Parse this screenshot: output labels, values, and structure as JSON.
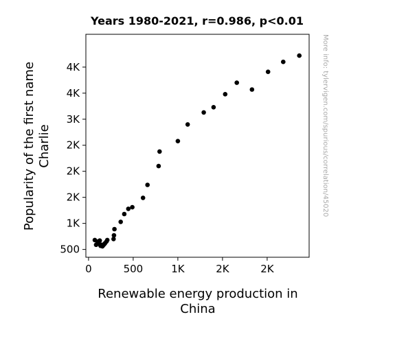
{
  "chart_data": {
    "type": "scatter",
    "title": "Years 1980-2021, r=0.986, p<0.01",
    "xlabel_lines": [
      "Renewable energy production in",
      "China"
    ],
    "ylabel_lines": [
      "Popularity of the first name",
      "Charlie"
    ],
    "watermark": "More info: tylervigen.com/spurious/correlation/45020",
    "xlim": [
      -30,
      2470
    ],
    "ylim": [
      350,
      4630
    ],
    "x_ticks": [
      {
        "value": 0,
        "label": "0"
      },
      {
        "value": 500,
        "label": "500"
      },
      {
        "value": 1000,
        "label": "1K"
      },
      {
        "value": 1500,
        "label": "2K"
      },
      {
        "value": 2000,
        "label": "2K"
      }
    ],
    "y_ticks": [
      {
        "value": 500,
        "label": "500"
      },
      {
        "value": 1000,
        "label": "1K"
      },
      {
        "value": 1500,
        "label": "2K"
      },
      {
        "value": 2000,
        "label": "2K"
      },
      {
        "value": 2500,
        "label": "2K"
      },
      {
        "value": 3000,
        "label": "3K"
      },
      {
        "value": 3500,
        "label": "4K"
      },
      {
        "value": 4000,
        "label": "4K"
      }
    ],
    "points": [
      {
        "x": 70,
        "y": 680
      },
      {
        "x": 85,
        "y": 590
      },
      {
        "x": 100,
        "y": 650
      },
      {
        "x": 115,
        "y": 610
      },
      {
        "x": 125,
        "y": 670
      },
      {
        "x": 135,
        "y": 570
      },
      {
        "x": 145,
        "y": 590
      },
      {
        "x": 155,
        "y": 560
      },
      {
        "x": 165,
        "y": 580
      },
      {
        "x": 175,
        "y": 600
      },
      {
        "x": 185,
        "y": 620
      },
      {
        "x": 200,
        "y": 650
      },
      {
        "x": 210,
        "y": 680
      },
      {
        "x": 280,
        "y": 700
      },
      {
        "x": 285,
        "y": 770
      },
      {
        "x": 290,
        "y": 890
      },
      {
        "x": 360,
        "y": 1030
      },
      {
        "x": 400,
        "y": 1180
      },
      {
        "x": 445,
        "y": 1280
      },
      {
        "x": 490,
        "y": 1310
      },
      {
        "x": 610,
        "y": 1490
      },
      {
        "x": 660,
        "y": 1740
      },
      {
        "x": 785,
        "y": 2100
      },
      {
        "x": 795,
        "y": 2380
      },
      {
        "x": 1000,
        "y": 2580
      },
      {
        "x": 1110,
        "y": 2900
      },
      {
        "x": 1290,
        "y": 3130
      },
      {
        "x": 1400,
        "y": 3230
      },
      {
        "x": 1530,
        "y": 3480
      },
      {
        "x": 1660,
        "y": 3700
      },
      {
        "x": 1830,
        "y": 3570
      },
      {
        "x": 2010,
        "y": 3910
      },
      {
        "x": 2180,
        "y": 4100
      },
      {
        "x": 2360,
        "y": 4220
      }
    ],
    "point_color": "#000000",
    "grid": false,
    "legend": "none"
  }
}
